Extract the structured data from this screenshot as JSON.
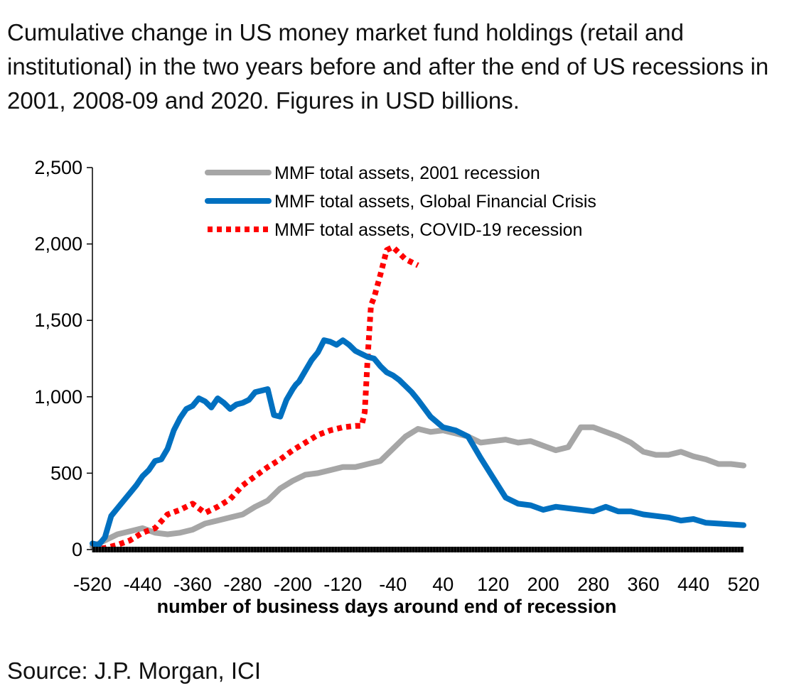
{
  "caption": "Cumulative change in US money market fund holdings (retail and institutional) in the two years before and after the end of US recessions in 2001, 2008-09 and 2020. Figures in USD billions.",
  "source": "Source: J.P. Morgan, ICI",
  "colors": {
    "series_2001": "#a6a6a6",
    "series_gfc": "#0070c0",
    "series_covid": "#ff0000",
    "axis": "#000000"
  },
  "chart_data": {
    "type": "line",
    "title": "",
    "xlabel": "number of business days around end of recession",
    "ylabel": "",
    "xlim": [
      -520,
      520
    ],
    "ylim": [
      0,
      2500
    ],
    "x_ticks": [
      "-520",
      "-440",
      "-360",
      "-280",
      "-200",
      "-120",
      "-40",
      "40",
      "120",
      "200",
      "280",
      "360",
      "440",
      "520"
    ],
    "y_ticks": [
      "0",
      "500",
      "1,000",
      "1,500",
      "2,000",
      "2,500"
    ],
    "legend_position": "top",
    "grid": false,
    "series": [
      {
        "name": "MMF total assets, 2001 recession",
        "style": "solid-gray",
        "x": [
          -520,
          -500,
          -480,
          -460,
          -440,
          -420,
          -400,
          -380,
          -360,
          -340,
          -320,
          -300,
          -280,
          -260,
          -240,
          -220,
          -200,
          -180,
          -160,
          -140,
          -120,
          -100,
          -80,
          -60,
          -40,
          -20,
          0,
          20,
          40,
          60,
          80,
          100,
          120,
          140,
          160,
          180,
          200,
          220,
          240,
          260,
          280,
          300,
          320,
          340,
          360,
          380,
          400,
          420,
          440,
          460,
          480,
          500,
          520
        ],
        "values": [
          20,
          60,
          100,
          120,
          140,
          110,
          100,
          110,
          130,
          170,
          190,
          210,
          230,
          280,
          320,
          400,
          450,
          490,
          500,
          520,
          540,
          540,
          560,
          580,
          660,
          740,
          790,
          770,
          780,
          760,
          740,
          700,
          710,
          720,
          700,
          710,
          680,
          650,
          670,
          800,
          800,
          770,
          740,
          700,
          640,
          620,
          620,
          640,
          610,
          590,
          560,
          560,
          550
        ]
      },
      {
        "name": "MMF total assets, Global Financial Crisis",
        "style": "solid-blue",
        "x": [
          -520,
          -510,
          -500,
          -490,
          -480,
          -470,
          -460,
          -450,
          -440,
          -430,
          -420,
          -410,
          -400,
          -390,
          -380,
          -370,
          -360,
          -350,
          -340,
          -330,
          -320,
          -310,
          -300,
          -290,
          -280,
          -270,
          -260,
          -250,
          -240,
          -230,
          -220,
          -210,
          -200,
          -195,
          -190,
          -180,
          -170,
          -160,
          -150,
          -140,
          -130,
          -120,
          -110,
          -100,
          -90,
          -80,
          -70,
          -60,
          -50,
          -40,
          -30,
          -20,
          -10,
          0,
          20,
          40,
          60,
          80,
          100,
          120,
          140,
          160,
          180,
          200,
          220,
          240,
          260,
          280,
          300,
          320,
          340,
          360,
          380,
          400,
          420,
          440,
          460,
          480,
          500,
          520
        ],
        "values": [
          40,
          30,
          80,
          220,
          270,
          320,
          370,
          420,
          480,
          520,
          580,
          590,
          660,
          780,
          860,
          920,
          940,
          990,
          970,
          930,
          990,
          960,
          920,
          950,
          960,
          980,
          1030,
          1040,
          1050,
          880,
          870,
          980,
          1050,
          1080,
          1100,
          1170,
          1240,
          1290,
          1370,
          1360,
          1340,
          1370,
          1340,
          1300,
          1280,
          1260,
          1250,
          1200,
          1160,
          1140,
          1110,
          1070,
          1030,
          980,
          870,
          800,
          780,
          740,
          600,
          470,
          340,
          300,
          290,
          260,
          280,
          270,
          260,
          250,
          280,
          250,
          250,
          230,
          220,
          210,
          190,
          200,
          175,
          170,
          165,
          160
        ]
      },
      {
        "name": "MMF total assets, COVID-19 recession",
        "style": "dotted-red",
        "x": [
          -520,
          -500,
          -480,
          -460,
          -440,
          -420,
          -400,
          -380,
          -360,
          -340,
          -320,
          -300,
          -280,
          -260,
          -240,
          -220,
          -200,
          -180,
          -160,
          -140,
          -120,
          -100,
          -90,
          -85,
          -80,
          -75,
          -70,
          -60,
          -50,
          -40,
          -30,
          -20,
          -10,
          0
        ],
        "values": [
          0,
          10,
          30,
          60,
          110,
          140,
          230,
          260,
          300,
          240,
          280,
          330,
          420,
          480,
          540,
          590,
          650,
          700,
          750,
          780,
          800,
          810,
          810,
          900,
          1280,
          1600,
          1650,
          1800,
          1960,
          1980,
          1940,
          1900,
          1880,
          1860
        ]
      }
    ]
  }
}
